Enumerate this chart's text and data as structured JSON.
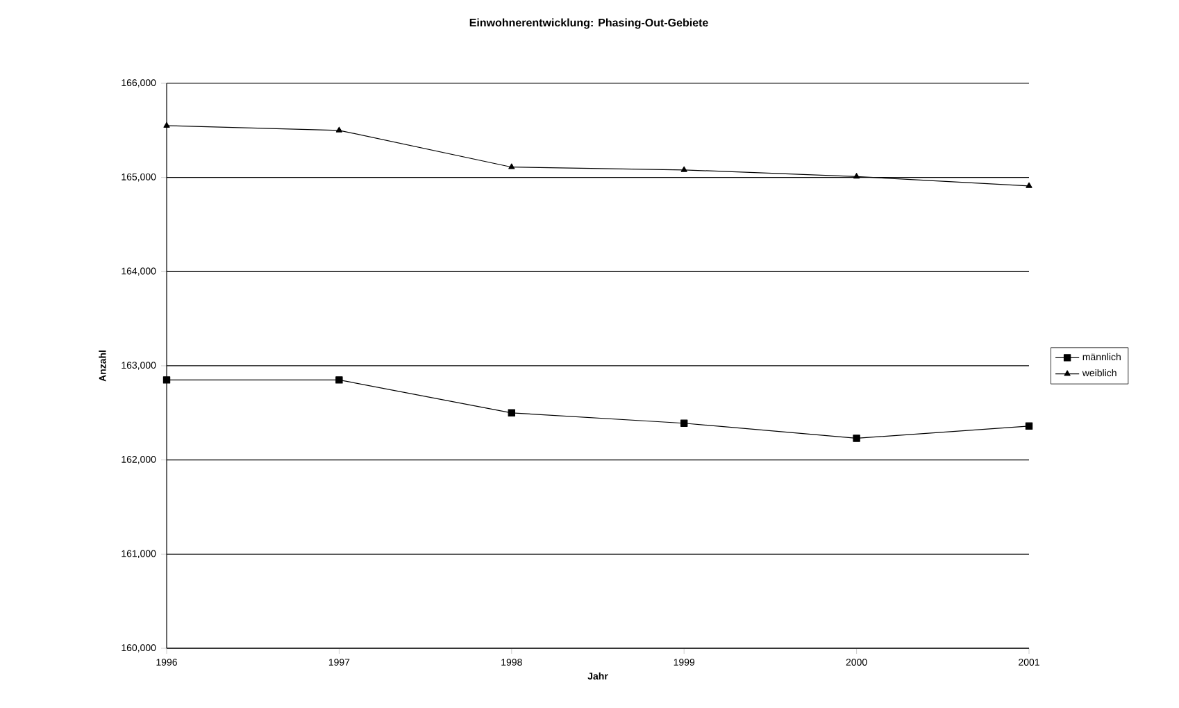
{
  "chart_data": {
    "type": "line",
    "title": "Einwohnerentwicklung: Phasing-Out-Gebiete",
    "xlabel": "Jahr",
    "ylabel": "Anzahl",
    "x": [
      1996,
      1997,
      1998,
      1999,
      2000,
      2001
    ],
    "series": [
      {
        "name": "männlich",
        "color": "#000000",
        "marker": "square",
        "values": [
          162850,
          162850,
          162500,
          162390,
          162230,
          162360
        ]
      },
      {
        "name": "weiblich",
        "color": "#000000",
        "marker": "triangle",
        "values": [
          165550,
          165500,
          165110,
          165080,
          165010,
          164910
        ]
      }
    ],
    "xlim": [
      1996,
      2001
    ],
    "xticks": [
      1996,
      1997,
      1998,
      1999,
      2000,
      2001
    ],
    "ylim": [
      160000,
      166000
    ],
    "yticks": [
      {
        "value": 160000,
        "label": "160,000"
      },
      {
        "value": 161000,
        "label": "161,000"
      },
      {
        "value": 162000,
        "label": "162,000"
      },
      {
        "value": 163000,
        "label": "163,000"
      },
      {
        "value": 164000,
        "label": "164,000"
      },
      {
        "value": 165000,
        "label": "165,000"
      },
      {
        "value": 166000,
        "label": "166,000"
      }
    ],
    "grid": "y",
    "legend": "right",
    "line_style": "solid"
  }
}
